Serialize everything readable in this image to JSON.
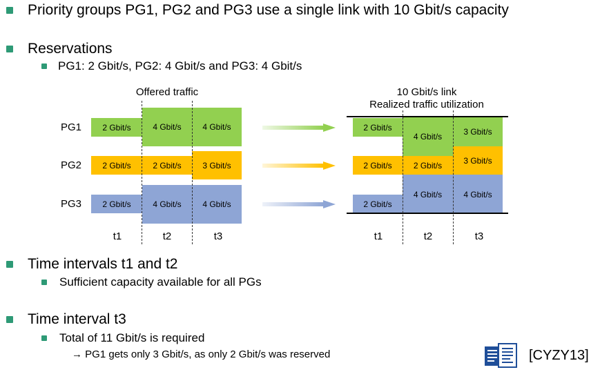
{
  "bullets": {
    "b1": "Priority groups PG1, PG2 and PG3 use a single link with 10 Gbit/s capacity",
    "b2": "Reservations",
    "b2_sub": "PG1: 2 Gbit/s, PG2: 4 Gbit/s and PG3: 4 Gbit/s",
    "b3": "Time intervals t1 and t2",
    "b3_sub": "Sufficient capacity available for all PGs",
    "b4": "Time interval t3",
    "b4_sub": "Total of 11 Gbit/s is required",
    "b4_subsub": "→ PG1 gets only 3 Gbit/s, as only 2 Gbit/s was reserved"
  },
  "offered": {
    "title": "Offered traffic",
    "rows": [
      {
        "label": "PG1",
        "values": [
          "2 Gbit/s",
          "4 Gbit/s",
          "4 Gbit/s"
        ]
      },
      {
        "label": "PG2",
        "values": [
          "2 Gbit/s",
          "2 Gbit/s",
          "3 Gbit/s"
        ]
      },
      {
        "label": "PG3",
        "values": [
          "2 Gbit/s",
          "4 Gbit/s",
          "4 Gbit/s"
        ]
      }
    ],
    "times": [
      "t1",
      "t2",
      "t3"
    ]
  },
  "realized": {
    "title1": "10 Gbit/s link",
    "title2": "Realized traffic utilization",
    "t1": [
      "2 Gbit/s",
      "2 Gbit/s",
      "2 Gbit/s"
    ],
    "t2": [
      "4 Gbit/s",
      "2 Gbit/s",
      "4 Gbit/s"
    ],
    "t3": [
      "3 Gbit/s",
      "3 Gbit/s",
      "4 Gbit/s"
    ],
    "times": [
      "t1",
      "t2",
      "t3"
    ]
  },
  "colors": {
    "pg1": "#92d050",
    "pg2": "#ffc000",
    "pg3": "#8ea5d5",
    "bullet": "#2e9a76"
  },
  "citation": "[CYZY13]",
  "citation_icon": "document-stack-icon"
}
